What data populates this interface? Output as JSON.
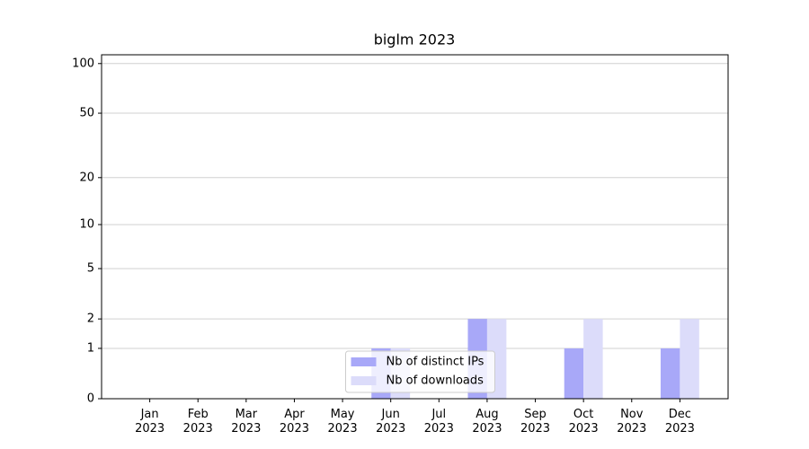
{
  "chart_data": {
    "type": "bar",
    "title": "biglm 2023",
    "categories": [
      "Jan\n2023",
      "Feb\n2023",
      "Mar\n2023",
      "Apr\n2023",
      "May\n2023",
      "Jun\n2023",
      "Jul\n2023",
      "Aug\n2023",
      "Sep\n2023",
      "Oct\n2023",
      "Nov\n2023",
      "Dec\n2023"
    ],
    "series": [
      {
        "name": "Nb of distinct IPs",
        "color": "#a8a8f8",
        "values": [
          0,
          0,
          0,
          0,
          0,
          1,
          0,
          2,
          0,
          1,
          0,
          1
        ]
      },
      {
        "name": "Nb of downloads",
        "color": "#dcdcfa",
        "values": [
          0,
          0,
          0,
          0,
          0,
          1,
          0,
          2,
          0,
          2,
          0,
          2
        ]
      }
    ],
    "yscale": "log1p",
    "ylim": [
      0,
      113
    ],
    "yticks": [
      0,
      1,
      2,
      5,
      10,
      20,
      50,
      100
    ],
    "grid": true,
    "legend": "lower center"
  }
}
